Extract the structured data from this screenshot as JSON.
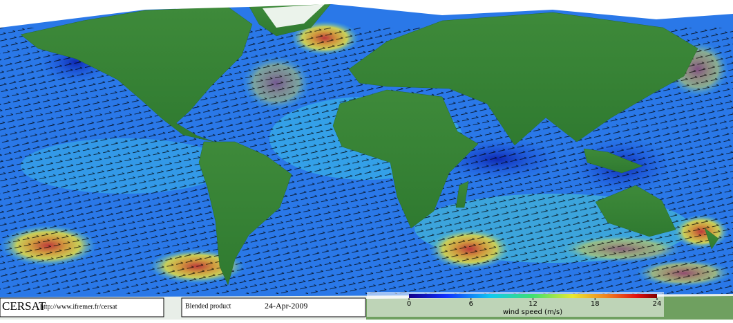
{
  "footer": {
    "brand": "CERSAT",
    "url": "http://www.ifremer.fr/cersat",
    "product": "Blended product",
    "date": "24-Apr-2009"
  },
  "colorbar": {
    "label": "wind speed (m/s)",
    "lim": [
      0,
      24
    ],
    "ticks": [
      0,
      6,
      12,
      18,
      24
    ]
  }
}
